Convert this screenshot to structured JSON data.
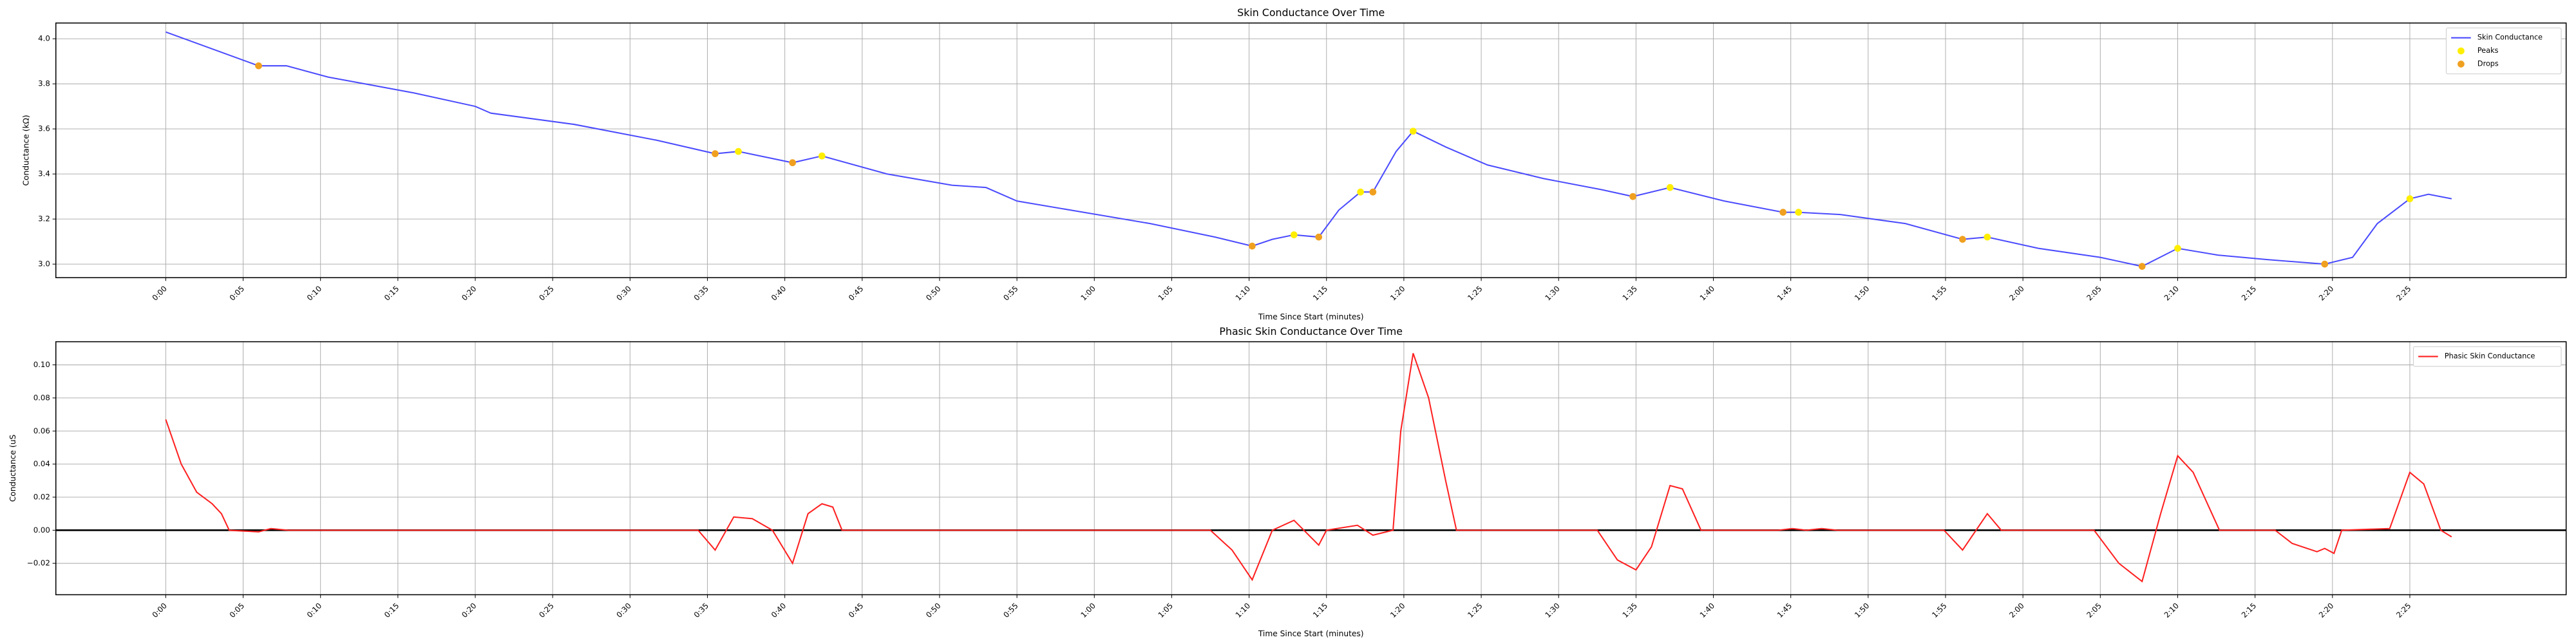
{
  "chart_data": [
    {
      "type": "line",
      "title": "Skin Conductance Over Time",
      "x_label": "Time Since Start (minutes)",
      "y_label": "Conductance (kΩ)",
      "grid": true,
      "legend": "upper right",
      "xlim": [
        -7.1,
        155.1
      ],
      "ylim": [
        2.94,
        4.07
      ],
      "xticks": [
        {
          "value": 0,
          "label": "0:00"
        },
        {
          "value": 5,
          "label": "0:05"
        },
        {
          "value": 10,
          "label": "0:10"
        },
        {
          "value": 15,
          "label": "0:15"
        },
        {
          "value": 20,
          "label": "0:20"
        },
        {
          "value": 25,
          "label": "0:25"
        },
        {
          "value": 30,
          "label": "0:30"
        },
        {
          "value": 35,
          "label": "0:35"
        },
        {
          "value": 40,
          "label": "0:40"
        },
        {
          "value": 45,
          "label": "0:45"
        },
        {
          "value": 50,
          "label": "0:50"
        },
        {
          "value": 55,
          "label": "0:55"
        },
        {
          "value": 60,
          "label": "1:00"
        },
        {
          "value": 65,
          "label": "1:05"
        },
        {
          "value": 70,
          "label": "1:10"
        },
        {
          "value": 75,
          "label": "1:15"
        },
        {
          "value": 80,
          "label": "1:20"
        },
        {
          "value": 85,
          "label": "1:25"
        },
        {
          "value": 90,
          "label": "1:30"
        },
        {
          "value": 95,
          "label": "1:35"
        },
        {
          "value": 100,
          "label": "1:40"
        },
        {
          "value": 105,
          "label": "1:45"
        },
        {
          "value": 110,
          "label": "1:50"
        },
        {
          "value": 115,
          "label": "1:55"
        },
        {
          "value": 120,
          "label": "2:00"
        },
        {
          "value": 125,
          "label": "2:05"
        },
        {
          "value": 130,
          "label": "2:10"
        },
        {
          "value": 135,
          "label": "2:15"
        },
        {
          "value": 140,
          "label": "2:20"
        },
        {
          "value": 145,
          "label": "2:25"
        }
      ],
      "yticks": [
        {
          "value": 3.0,
          "label": "3.0"
        },
        {
          "value": 3.2,
          "label": "3.2"
        },
        {
          "value": 3.4,
          "label": "3.4"
        },
        {
          "value": 3.6,
          "label": "3.6"
        },
        {
          "value": 3.8,
          "label": "3.8"
        },
        {
          "value": 4.0,
          "label": "4.0"
        }
      ],
      "series": [
        {
          "name": "Skin Conductance",
          "type": "line",
          "color": "#4b4bff",
          "x": [
            0,
            6,
            7.8,
            10.5,
            16,
            20,
            21,
            26.4,
            31.7,
            35.5,
            37,
            40.5,
            42.4,
            46.6,
            50.8,
            53,
            55,
            59.3,
            63.6,
            67.8,
            70.2,
            71.5,
            72.9,
            74.5,
            75.8,
            77.2,
            78,
            79.5,
            80.6,
            82.7,
            85.4,
            89,
            92.8,
            94.8,
            97.2,
            100.7,
            104.5,
            105.5,
            108.2,
            112.4,
            116.1,
            117.7,
            121,
            125,
            127.7,
            130,
            132.6,
            135.8,
            139.5,
            141.3,
            142.9,
            145,
            146.2,
            147.7
          ],
          "values": [
            4.03,
            3.88,
            3.88,
            3.83,
            3.76,
            3.7,
            3.67,
            3.62,
            3.55,
            3.49,
            3.5,
            3.45,
            3.48,
            3.4,
            3.35,
            3.34,
            3.28,
            3.23,
            3.18,
            3.12,
            3.08,
            3.11,
            3.13,
            3.12,
            3.24,
            3.32,
            3.32,
            3.5,
            3.59,
            3.52,
            3.44,
            3.38,
            3.33,
            3.3,
            3.34,
            3.28,
            3.23,
            3.23,
            3.22,
            3.18,
            3.11,
            3.12,
            3.07,
            3.03,
            2.99,
            3.07,
            3.04,
            3.02,
            3.0,
            3.03,
            3.18,
            3.29,
            3.31,
            3.29
          ]
        },
        {
          "name": "Peaks",
          "type": "scatter",
          "color": "#ffee00",
          "x": [
            37,
            42.4,
            72.9,
            77.2,
            80.6,
            97.2,
            105.5,
            117.7,
            130,
            145
          ],
          "values": [
            3.5,
            3.48,
            3.13,
            3.32,
            3.59,
            3.34,
            3.23,
            3.12,
            3.07,
            3.29
          ]
        },
        {
          "name": "Drops",
          "type": "scatter",
          "color": "#f0a020",
          "x": [
            6,
            35.5,
            40.5,
            70.2,
            74.5,
            78,
            94.8,
            104.5,
            116.1,
            127.7,
            139.5
          ],
          "values": [
            3.88,
            3.49,
            3.45,
            3.08,
            3.12,
            3.32,
            3.3,
            3.23,
            3.11,
            2.99,
            3.0
          ]
        }
      ]
    },
    {
      "type": "line",
      "title": "Phasic Skin Conductance Over Time",
      "x_label": "Time Since Start (minutes)",
      "y_label": "Conductance (uS",
      "grid": true,
      "legend": "upper right",
      "hline": 0,
      "xlim": [
        -7.1,
        155.1
      ],
      "ylim": [
        -0.039,
        0.114
      ],
      "xticks": [
        {
          "value": 0,
          "label": "0:00"
        },
        {
          "value": 5,
          "label": "0:05"
        },
        {
          "value": 10,
          "label": "0:10"
        },
        {
          "value": 15,
          "label": "0:15"
        },
        {
          "value": 20,
          "label": "0:20"
        },
        {
          "value": 25,
          "label": "0:25"
        },
        {
          "value": 30,
          "label": "0:30"
        },
        {
          "value": 35,
          "label": "0:35"
        },
        {
          "value": 40,
          "label": "0:40"
        },
        {
          "value": 45,
          "label": "0:45"
        },
        {
          "value": 50,
          "label": "0:50"
        },
        {
          "value": 55,
          "label": "0:55"
        },
        {
          "value": 60,
          "label": "1:00"
        },
        {
          "value": 65,
          "label": "1:05"
        },
        {
          "value": 70,
          "label": "1:10"
        },
        {
          "value": 75,
          "label": "1:15"
        },
        {
          "value": 80,
          "label": "1:20"
        },
        {
          "value": 85,
          "label": "1:25"
        },
        {
          "value": 90,
          "label": "1:30"
        },
        {
          "value": 95,
          "label": "1:35"
        },
        {
          "value": 100,
          "label": "1:40"
        },
        {
          "value": 105,
          "label": "1:45"
        },
        {
          "value": 110,
          "label": "1:50"
        },
        {
          "value": 115,
          "label": "1:55"
        },
        {
          "value": 120,
          "label": "2:00"
        },
        {
          "value": 125,
          "label": "2:05"
        },
        {
          "value": 130,
          "label": "2:10"
        },
        {
          "value": 135,
          "label": "2:15"
        },
        {
          "value": 140,
          "label": "2:20"
        },
        {
          "value": 145,
          "label": "2:25"
        }
      ],
      "yticks": [
        {
          "value": -0.02,
          "label": "−0.02"
        },
        {
          "value": 0,
          "label": "0.00"
        },
        {
          "value": 0.02,
          "label": "0.02"
        },
        {
          "value": 0.04,
          "label": "0.04"
        },
        {
          "value": 0.06,
          "label": "0.06"
        },
        {
          "value": 0.08,
          "label": "0.08"
        },
        {
          "value": 0.1,
          "label": "0.10"
        }
      ],
      "series": [
        {
          "name": "Phasic Skin Conductance",
          "type": "line",
          "color": "#ff2020",
          "x": [
            0,
            1,
            2,
            3,
            3.6,
            4.1,
            6,
            6.8,
            7.9,
            34.4,
            35.5,
            36.7,
            37.9,
            39.2,
            40.5,
            41.5,
            42.4,
            43.1,
            43.7,
            67.5,
            68.9,
            70.2,
            71.5,
            72.9,
            74.5,
            75,
            77,
            78,
            79.3,
            79.8,
            80.6,
            81.6,
            82.7,
            83.4,
            92.5,
            93.8,
            95,
            96,
            97.2,
            98,
            99.2,
            104.2,
            105.1,
            106,
            107,
            108,
            114.9,
            116.1,
            117.7,
            118.6,
            124.6,
            126.2,
            127.7,
            128.9,
            130,
            131,
            132.7,
            136.3,
            137.4,
            139,
            139.5,
            140.1,
            140.6,
            143.7,
            145,
            145.9,
            147,
            147.7
          ],
          "values": [
            0.067,
            0.04,
            0.023,
            0.016,
            0.01,
            0.0,
            -0.001,
            0.001,
            0.0,
            0.0,
            -0.012,
            0.008,
            0.007,
            0.0,
            -0.02,
            0.01,
            0.016,
            0.014,
            0.0,
            0.0,
            -0.012,
            -0.03,
            0.0,
            0.006,
            -0.009,
            0.0,
            0.003,
            -0.003,
            0.0,
            0.06,
            0.107,
            0.08,
            0.03,
            0.0,
            0.0,
            -0.018,
            -0.024,
            -0.01,
            0.027,
            0.025,
            0.0,
            0.0,
            0.001,
            0.0,
            0.001,
            0.0,
            0.0,
            -0.012,
            0.01,
            0.0,
            0.0,
            -0.02,
            -0.031,
            0.01,
            0.045,
            0.035,
            0.0,
            0.0,
            -0.008,
            -0.013,
            -0.011,
            -0.014,
            0.0,
            0.001,
            0.035,
            0.028,
            0.0,
            -0.004
          ]
        }
      ]
    }
  ]
}
